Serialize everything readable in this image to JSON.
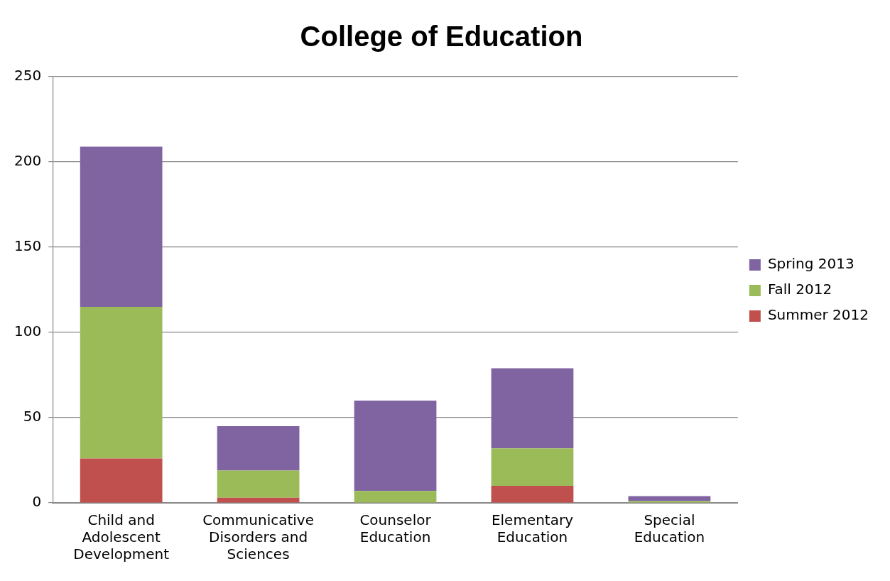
{
  "chart_data": {
    "type": "bar",
    "title": "College of Education",
    "stacked": true,
    "categories": [
      "Child and Adolescent Development",
      "Communicative Disorders and Sciences",
      "Counselor Education",
      "Elementary Education",
      "Special Education"
    ],
    "series": [
      {
        "name": "Summer 2012",
        "color": "#c0504d",
        "values": [
          26,
          3,
          0,
          10,
          0
        ]
      },
      {
        "name": "Fall 2012",
        "color": "#9bbb59",
        "values": [
          89,
          16,
          7,
          22,
          1
        ]
      },
      {
        "name": "Spring 2013",
        "color": "#8064a2",
        "values": [
          94,
          26,
          53,
          47,
          3
        ]
      }
    ],
    "ylim": [
      0,
      250
    ],
    "yticks": [
      0,
      50,
      100,
      150,
      200,
      250
    ],
    "grid": "y",
    "legend": "right"
  }
}
